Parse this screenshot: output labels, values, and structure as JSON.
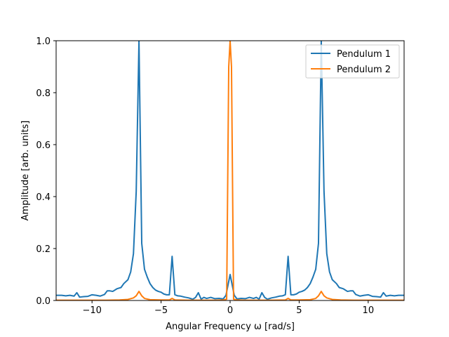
{
  "chart_data": {
    "type": "line",
    "xlabel": "Angular Frequency ω [rad/s]",
    "ylabel": "Amplitude [arb. units]",
    "xlim": [
      -12.6,
      12.6
    ],
    "ylim": [
      0,
      1.0
    ],
    "x_ticks": [
      -10,
      -5,
      0,
      5,
      10
    ],
    "x_tick_labels": [
      "−10",
      "−5",
      "0",
      "5",
      "10"
    ],
    "y_ticks": [
      0.0,
      0.2,
      0.4,
      0.6,
      0.8,
      1.0
    ],
    "y_tick_labels": [
      "0.0",
      "0.2",
      "0.4",
      "0.6",
      "0.8",
      "1.0"
    ],
    "grid": false,
    "legend_position": "top-right",
    "series": [
      {
        "name": "Pendulum 1",
        "color": "#1f77b4",
        "points": [
          [
            -12.6,
            0.02
          ],
          [
            -12.2,
            0.02
          ],
          [
            -11.9,
            0.018
          ],
          [
            -11.6,
            0.02
          ],
          [
            -11.3,
            0.017
          ],
          [
            -11.1,
            0.03
          ],
          [
            -10.9,
            0.013
          ],
          [
            -10.6,
            0.015
          ],
          [
            -10.3,
            0.016
          ],
          [
            -10.0,
            0.022
          ],
          [
            -9.7,
            0.02
          ],
          [
            -9.4,
            0.017
          ],
          [
            -9.1,
            0.023
          ],
          [
            -8.9,
            0.037
          ],
          [
            -8.7,
            0.037
          ],
          [
            -8.5,
            0.035
          ],
          [
            -8.2,
            0.045
          ],
          [
            -7.9,
            0.05
          ],
          [
            -7.7,
            0.065
          ],
          [
            -7.4,
            0.08
          ],
          [
            -7.2,
            0.11
          ],
          [
            -7.0,
            0.18
          ],
          [
            -6.8,
            0.42
          ],
          [
            -6.6,
            1.0
          ],
          [
            -6.4,
            0.22
          ],
          [
            -6.2,
            0.12
          ],
          [
            -6.0,
            0.09
          ],
          [
            -5.8,
            0.065
          ],
          [
            -5.6,
            0.05
          ],
          [
            -5.4,
            0.04
          ],
          [
            -5.2,
            0.035
          ],
          [
            -5.0,
            0.032
          ],
          [
            -4.8,
            0.025
          ],
          [
            -4.6,
            0.022
          ],
          [
            -4.4,
            0.022
          ],
          [
            -4.2,
            0.17
          ],
          [
            -4.0,
            0.022
          ],
          [
            -3.8,
            0.018
          ],
          [
            -3.6,
            0.017
          ],
          [
            -3.3,
            0.013
          ],
          [
            -3.0,
            0.01
          ],
          [
            -2.7,
            0.005
          ],
          [
            -2.5,
            0.012
          ],
          [
            -2.3,
            0.03
          ],
          [
            -2.1,
            0.005
          ],
          [
            -1.9,
            0.012
          ],
          [
            -1.7,
            0.008
          ],
          [
            -1.4,
            0.012
          ],
          [
            -1.1,
            0.007
          ],
          [
            -0.8,
            0.008
          ],
          [
            -0.5,
            0.006
          ],
          [
            -0.3,
            0.02
          ],
          [
            0.0,
            0.1
          ],
          [
            0.3,
            0.02
          ],
          [
            0.5,
            0.006
          ],
          [
            0.8,
            0.008
          ],
          [
            1.1,
            0.007
          ],
          [
            1.4,
            0.012
          ],
          [
            1.7,
            0.008
          ],
          [
            1.9,
            0.012
          ],
          [
            2.1,
            0.005
          ],
          [
            2.3,
            0.03
          ],
          [
            2.5,
            0.012
          ],
          [
            2.7,
            0.005
          ],
          [
            3.0,
            0.01
          ],
          [
            3.3,
            0.013
          ],
          [
            3.6,
            0.017
          ],
          [
            3.8,
            0.018
          ],
          [
            4.0,
            0.022
          ],
          [
            4.2,
            0.17
          ],
          [
            4.4,
            0.022
          ],
          [
            4.6,
            0.022
          ],
          [
            4.8,
            0.025
          ],
          [
            5.0,
            0.032
          ],
          [
            5.2,
            0.035
          ],
          [
            5.4,
            0.04
          ],
          [
            5.6,
            0.05
          ],
          [
            5.8,
            0.065
          ],
          [
            6.0,
            0.09
          ],
          [
            6.2,
            0.12
          ],
          [
            6.4,
            0.22
          ],
          [
            6.6,
            1.0
          ],
          [
            6.8,
            0.42
          ],
          [
            7.0,
            0.18
          ],
          [
            7.2,
            0.11
          ],
          [
            7.4,
            0.08
          ],
          [
            7.7,
            0.065
          ],
          [
            7.9,
            0.05
          ],
          [
            8.2,
            0.045
          ],
          [
            8.5,
            0.035
          ],
          [
            8.7,
            0.037
          ],
          [
            8.9,
            0.037
          ],
          [
            9.1,
            0.023
          ],
          [
            9.4,
            0.017
          ],
          [
            9.7,
            0.02
          ],
          [
            10.0,
            0.022
          ],
          [
            10.3,
            0.016
          ],
          [
            10.6,
            0.015
          ],
          [
            10.9,
            0.013
          ],
          [
            11.1,
            0.03
          ],
          [
            11.3,
            0.017
          ],
          [
            11.6,
            0.02
          ],
          [
            11.9,
            0.018
          ],
          [
            12.2,
            0.02
          ],
          [
            12.6,
            0.02
          ]
        ]
      },
      {
        "name": "Pendulum 2",
        "color": "#ff7f0e",
        "points": [
          [
            -12.6,
            0.001
          ],
          [
            -9.0,
            0.001
          ],
          [
            -8.0,
            0.002
          ],
          [
            -7.4,
            0.004
          ],
          [
            -7.0,
            0.01
          ],
          [
            -6.8,
            0.018
          ],
          [
            -6.6,
            0.035
          ],
          [
            -6.4,
            0.018
          ],
          [
            -6.2,
            0.008
          ],
          [
            -5.8,
            0.003
          ],
          [
            -5.0,
            0.002
          ],
          [
            -4.4,
            0.002
          ],
          [
            -4.2,
            0.008
          ],
          [
            -4.0,
            0.002
          ],
          [
            -3.0,
            0.001
          ],
          [
            -1.0,
            0.001
          ],
          [
            -0.5,
            0.002
          ],
          [
            -0.25,
            0.005
          ],
          [
            -0.1,
            0.9
          ],
          [
            0.0,
            1.0
          ],
          [
            0.1,
            0.9
          ],
          [
            0.25,
            0.005
          ],
          [
            0.5,
            0.002
          ],
          [
            1.0,
            0.001
          ],
          [
            3.0,
            0.001
          ],
          [
            4.0,
            0.002
          ],
          [
            4.2,
            0.008
          ],
          [
            4.4,
            0.002
          ],
          [
            5.0,
            0.002
          ],
          [
            5.8,
            0.003
          ],
          [
            6.2,
            0.008
          ],
          [
            6.4,
            0.018
          ],
          [
            6.6,
            0.035
          ],
          [
            6.8,
            0.018
          ],
          [
            7.0,
            0.01
          ],
          [
            7.4,
            0.004
          ],
          [
            8.0,
            0.002
          ],
          [
            9.0,
            0.001
          ],
          [
            12.6,
            0.001
          ]
        ]
      }
    ]
  }
}
